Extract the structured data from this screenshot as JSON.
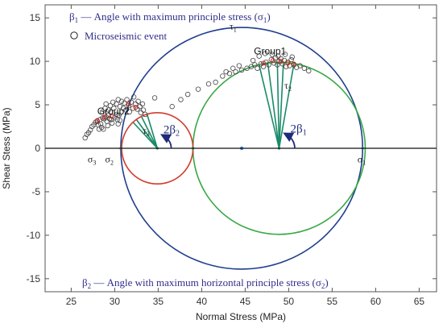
{
  "chart_data": {
    "type": "scatter",
    "xlabel": "Normal Stress (MPa)",
    "ylabel": "Shear Stess (MPa)",
    "xlim": [
      22,
      67
    ],
    "ylim": [
      -16.5,
      16.5
    ],
    "xticks": [
      25,
      30,
      35,
      40,
      45,
      50,
      55,
      60,
      65
    ],
    "yticks": [
      -15,
      -10,
      -5,
      0,
      5,
      10,
      15
    ],
    "grid": false,
    "legend": {
      "position": "top-left",
      "beta1_symbol": "β",
      "beta1_sub": "1",
      "beta1_text": " — Angle with  maximum principle stress (σ",
      "beta1_tail": "1",
      "marker_text": "Microseismic event",
      "beta2_symbol": "β",
      "beta2_sub": "2",
      "beta2_text": " — Angle with  maximum horizontal principle stress (σ",
      "beta2_tail": "2"
    },
    "circles": [
      {
        "name": "sigma1-sigma3",
        "center": 44.6,
        "radius": 13.9,
        "color": "#1f3f8f"
      },
      {
        "name": "sigma1-sigma2",
        "center": 48.9,
        "radius": 9.9,
        "color": "#3aa845"
      },
      {
        "name": "sigma2-sigma3",
        "center": 34.9,
        "radius": 4.1,
        "color": "#d23c2c"
      }
    ],
    "center_dot": {
      "x": 44.6,
      "y": 0,
      "color": "#3f7fd0"
    },
    "fan_lines": [
      {
        "from": [
          48.9,
          0
        ],
        "to": [
          46.6,
          9.6
        ]
      },
      {
        "from": [
          48.9,
          0
        ],
        "to": [
          47.6,
          9.8
        ]
      },
      {
        "from": [
          48.9,
          0
        ],
        "to": [
          48.7,
          9.9
        ]
      },
      {
        "from": [
          48.9,
          0
        ],
        "to": [
          49.4,
          9.9
        ]
      },
      {
        "from": [
          48.9,
          0
        ],
        "to": [
          50.6,
          9.7
        ]
      },
      {
        "from": [
          34.9,
          0
        ],
        "to": [
          32.1,
          3.0
        ]
      },
      {
        "from": [
          34.9,
          0
        ],
        "to": [
          32.5,
          3.3
        ]
      },
      {
        "from": [
          34.9,
          0
        ],
        "to": [
          33.1,
          3.6
        ]
      },
      {
        "from": [
          34.9,
          0
        ],
        "to": [
          33.7,
          4.0
        ]
      }
    ],
    "fan_color": "#1a8a68",
    "arcs": [
      {
        "center": [
          48.9,
          0
        ],
        "radius": 1.8,
        "label": "2β",
        "sub": "1",
        "label_at": [
          50.2,
          1.8
        ]
      },
      {
        "center": [
          34.9,
          0
        ],
        "radius": 1.6,
        "label": "2β",
        "sub": "2",
        "label_at": [
          35.6,
          1.7
        ]
      }
    ],
    "labels": [
      {
        "text": "σ",
        "sub": "1",
        "at": [
          57.9,
          -0.9
        ]
      },
      {
        "text": "σ",
        "sub": "2",
        "at": [
          28.9,
          -0.9
        ]
      },
      {
        "text": "σ",
        "sub": "3",
        "at": [
          26.9,
          -0.9
        ]
      },
      {
        "text": "τ",
        "sub": "1",
        "at": [
          43.2,
          14.4
        ]
      },
      {
        "text": "τ",
        "sub": "2",
        "at": [
          49.5,
          7.6
        ]
      },
      {
        "text": "τ",
        "sub": "3",
        "at": [
          33.2,
          2.4
        ]
      }
    ],
    "groups": [
      {
        "text": "Group1",
        "at": [
          46.0,
          10.8
        ]
      },
      {
        "text": "Group2",
        "at": [
          28.0,
          3.9
        ]
      }
    ],
    "events": [
      [
        26.6,
        1.2
      ],
      [
        26.8,
        1.6
      ],
      [
        27.0,
        1.8
      ],
      [
        27.2,
        2.1
      ],
      [
        27.4,
        2.5
      ],
      [
        27.6,
        2.7
      ],
      [
        27.8,
        3.0
      ],
      [
        28.0,
        3.1
      ],
      [
        28.1,
        2.7
      ],
      [
        28.3,
        3.3
      ],
      [
        28.4,
        2.8
      ],
      [
        28.6,
        3.5
      ],
      [
        28.8,
        3.4
      ],
      [
        29.0,
        3.6
      ],
      [
        29.1,
        3.1
      ],
      [
        29.3,
        3.8
      ],
      [
        29.4,
        3.4
      ],
      [
        29.6,
        3.3
      ],
      [
        29.8,
        3.7
      ],
      [
        30.0,
        3.5
      ],
      [
        30.2,
        3.9
      ],
      [
        30.3,
        3.3
      ],
      [
        30.5,
        3.8
      ],
      [
        30.6,
        3.2
      ],
      [
        28.6,
        4.2
      ],
      [
        28.9,
        4.6
      ],
      [
        29.0,
        5.1
      ],
      [
        29.3,
        4.4
      ],
      [
        29.5,
        4.9
      ],
      [
        29.8,
        5.3
      ],
      [
        29.9,
        4.6
      ],
      [
        30.2,
        5.1
      ],
      [
        30.4,
        5.6
      ],
      [
        30.6,
        4.8
      ],
      [
        30.8,
        5.4
      ],
      [
        31.0,
        4.6
      ],
      [
        31.1,
        5.2
      ],
      [
        31.3,
        4.4
      ],
      [
        31.4,
        5.6
      ],
      [
        31.6,
        4.9
      ],
      [
        31.7,
        4.2
      ],
      [
        31.9,
        5.3
      ],
      [
        32.1,
        4.6
      ],
      [
        32.2,
        5.9
      ],
      [
        32.4,
        5.1
      ],
      [
        32.6,
        4.5
      ],
      [
        32.7,
        5.4
      ],
      [
        32.9,
        4.8
      ],
      [
        33.0,
        4.1
      ],
      [
        33.2,
        5.1
      ],
      [
        33.3,
        4.4
      ],
      [
        33.5,
        3.9
      ],
      [
        28.2,
        2.2
      ],
      [
        28.5,
        2.4
      ],
      [
        28.7,
        2.2
      ],
      [
        29.2,
        2.6
      ],
      [
        29.7,
        2.9
      ],
      [
        30.4,
        2.8
      ],
      [
        34.6,
        5.8
      ],
      [
        36.6,
        4.8
      ],
      [
        37.6,
        5.6
      ],
      [
        38.4,
        6.2
      ],
      [
        39.6,
        6.8
      ],
      [
        40.8,
        7.4
      ],
      [
        41.6,
        7.6
      ],
      [
        42.4,
        8.3
      ],
      [
        43.2,
        8.6
      ],
      [
        43.9,
        8.8
      ],
      [
        44.6,
        9.0
      ],
      [
        45.2,
        9.2
      ],
      [
        45.7,
        9.4
      ],
      [
        46.1,
        9.6
      ],
      [
        46.4,
        9.2
      ],
      [
        46.8,
        9.7
      ],
      [
        47.1,
        9.4
      ],
      [
        47.4,
        9.9
      ],
      [
        47.7,
        9.6
      ],
      [
        48.0,
        10.2
      ],
      [
        48.3,
        9.8
      ],
      [
        48.5,
        10.4
      ],
      [
        48.7,
        9.6
      ],
      [
        48.9,
        10.0
      ],
      [
        49.1,
        10.3
      ],
      [
        49.3,
        9.7
      ],
      [
        49.5,
        10.1
      ],
      [
        49.7,
        9.4
      ],
      [
        49.9,
        9.9
      ],
      [
        50.1,
        9.5
      ],
      [
        50.3,
        10.2
      ],
      [
        50.6,
        9.6
      ],
      [
        50.9,
        9.3
      ],
      [
        51.3,
        9.5
      ],
      [
        51.8,
        9.2
      ],
      [
        52.3,
        8.9
      ],
      [
        46.6,
        10.6
      ],
      [
        47.3,
        10.9
      ],
      [
        48.1,
        10.8
      ],
      [
        48.8,
        10.6
      ],
      [
        49.6,
        10.8
      ],
      [
        50.4,
        10.5
      ],
      [
        45.9,
        10.1
      ],
      [
        44.3,
        9.5
      ],
      [
        43.6,
        9.2
      ],
      [
        42.8,
        8.8
      ]
    ],
    "event_color": "#444444",
    "highlight_events": [
      [
        28.0,
        3.2
      ],
      [
        28.8,
        3.6
      ],
      [
        29.6,
        3.7
      ],
      [
        31.6,
        5.1
      ],
      [
        32.4,
        4.7
      ],
      [
        47.1,
        9.8
      ],
      [
        48.2,
        10.1
      ],
      [
        49.1,
        10.0
      ],
      [
        49.9,
        9.8
      ],
      [
        50.6,
        9.7
      ]
    ],
    "highlight_color": "#d7261e"
  }
}
